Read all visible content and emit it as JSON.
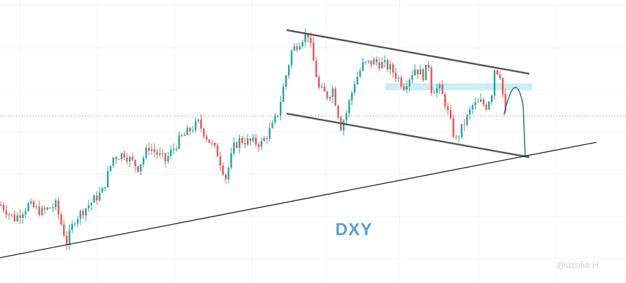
{
  "chart_data": {
    "type": "candlestick",
    "title": "",
    "symbol_label": "DXY",
    "xlabel": "",
    "ylabel": "",
    "grid": true,
    "colors": {
      "up": "#26a69a",
      "down": "#ef5350",
      "channel": "#555555",
      "support": "#1a1a1a",
      "zone": "#cdeef3",
      "projection": "#3a5f9a",
      "label": "#5b9bd9"
    },
    "close_path": [
      [
        0,
        26.7
      ],
      [
        5,
        20
      ],
      [
        10,
        26.7
      ],
      [
        15,
        23.3
      ],
      [
        20,
        26.7
      ],
      [
        24,
        8.3
      ],
      [
        27,
        20
      ],
      [
        32,
        26.7
      ],
      [
        37,
        33.3
      ],
      [
        41,
        50
      ],
      [
        45,
        51.7
      ],
      [
        50,
        45
      ],
      [
        54,
        55
      ],
      [
        60,
        48.3
      ],
      [
        65,
        58.3
      ],
      [
        69,
        63.3
      ],
      [
        72,
        66.7
      ],
      [
        75,
        60
      ],
      [
        79,
        51.7
      ],
      [
        82,
        40
      ],
      [
        85,
        55
      ],
      [
        87,
        58.3
      ],
      [
        95,
        56.7
      ],
      [
        99,
        65
      ],
      [
        101,
        71.7
      ],
      [
        104,
        90
      ],
      [
        106,
        101.7
      ],
      [
        110,
        108.3
      ],
      [
        112,
        110
      ],
      [
        114,
        96.7
      ],
      [
        116,
        83.3
      ],
      [
        119,
        80
      ],
      [
        121,
        83.3
      ],
      [
        124,
        65
      ],
      [
        126,
        71.7
      ],
      [
        129,
        86.7
      ],
      [
        132,
        95
      ],
      [
        136,
        96.7
      ],
      [
        140,
        95
      ],
      [
        142,
        93.3
      ],
      [
        145,
        88.3
      ],
      [
        147,
        85
      ],
      [
        151,
        93.3
      ],
      [
        154,
        90
      ],
      [
        156,
        95
      ],
      [
        157,
        83.3
      ],
      [
        160,
        83.3
      ],
      [
        162,
        76.7
      ],
      [
        165,
        61.7
      ],
      [
        166,
        58.3
      ],
      [
        169,
        66.7
      ],
      [
        172,
        75
      ],
      [
        175,
        76.7
      ],
      [
        177,
        75
      ],
      [
        179,
        81.7
      ],
      [
        180,
        93.3
      ],
      [
        182,
        90.7
      ],
      [
        184,
        70.7
      ]
    ],
    "current_price": 70,
    "drawings": {
      "channel_upper": [
        [
          104.5,
          112
        ],
        [
          193,
          90.7
        ]
      ],
      "channel_lower": [
        [
          104.5,
          71.3
        ],
        [
          193,
          50
        ]
      ],
      "support_line": [
        [
          0,
          1
        ],
        [
          217.5,
          57.3
        ]
      ],
      "resistance_zone": {
        "x": [
          140.5,
          194
        ],
        "y": [
          82.7,
          86
        ]
      },
      "projection": [
        [
          183.75,
          70.7
        ],
        [
          190,
          81.7
        ],
        [
          191.5,
          50.7
        ]
      ]
    }
  },
  "watermark": "@uzofia H"
}
